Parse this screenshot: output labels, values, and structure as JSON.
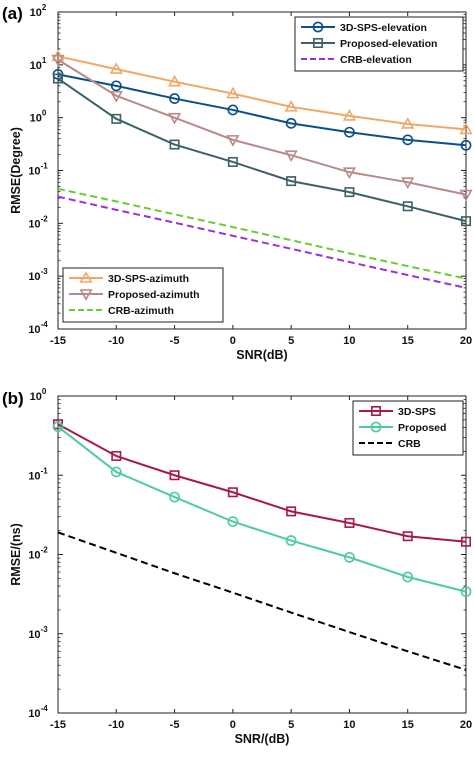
{
  "chart_data": [
    {
      "panel_label": "(a)",
      "type": "line",
      "xlabel": "SNR(dB)",
      "ylabel": "RMSE(Degree)",
      "x": [
        -15,
        -10,
        -5,
        0,
        5,
        10,
        15,
        20
      ],
      "xlim": [
        -15,
        20
      ],
      "ylim": [
        0.0001,
        100
      ],
      "yscale": "log",
      "x_ticks": [
        "-15",
        "-10",
        "-5",
        "0",
        "5",
        "10",
        "15",
        "20"
      ],
      "y_ticks": [
        {
          "base": "10",
          "exp": "-4"
        },
        {
          "base": "10",
          "exp": "-3"
        },
        {
          "base": "10",
          "exp": "-2"
        },
        {
          "base": "10",
          "exp": "-1"
        },
        {
          "base": "10",
          "exp": "0"
        },
        {
          "base": "10",
          "exp": "1"
        },
        {
          "base": "10",
          "exp": "2"
        }
      ],
      "grid": false,
      "legends": [
        {
          "placement": "top-right",
          "series": [
            0,
            1,
            2
          ]
        },
        {
          "placement": "bottom-left",
          "series": [
            3,
            4,
            5
          ]
        }
      ],
      "series": [
        {
          "name": "3D-SPS-elevation",
          "color": "#0b4f8c",
          "marker": "circle",
          "dash": "solid",
          "values": [
            6.6,
            4.0,
            2.3,
            1.4,
            0.78,
            0.53,
            0.38,
            0.3
          ]
        },
        {
          "name": "Proposed-elevation",
          "color": "#3b6268",
          "marker": "square",
          "dash": "solid",
          "values": [
            5.5,
            0.95,
            0.31,
            0.145,
            0.063,
            0.039,
            0.021,
            0.011
          ]
        },
        {
          "name": "CRB-elevation",
          "color": "#9b30d9",
          "marker": "none",
          "dash": "dashed",
          "values": [
            0.032,
            0.018,
            0.0103,
            0.0058,
            0.0033,
            0.00185,
            0.00105,
            0.0006
          ]
        },
        {
          "name": "3D-SPS-azimuth",
          "color": "#f0a868",
          "marker": "triangle-up",
          "dash": "solid",
          "values": [
            14.5,
            8.3,
            4.8,
            2.85,
            1.6,
            1.08,
            0.76,
            0.6
          ]
        },
        {
          "name": "Proposed-azimuth",
          "color": "#b88a8a",
          "marker": "triangle-down",
          "dash": "solid",
          "values": [
            12.5,
            2.6,
            1.0,
            0.38,
            0.195,
            0.093,
            0.06,
            0.035
          ]
        },
        {
          "name": "CRB-azimuth",
          "color": "#66cc33",
          "marker": "none",
          "dash": "dashed",
          "values": [
            0.045,
            0.026,
            0.0148,
            0.0085,
            0.0048,
            0.0027,
            0.00155,
            0.0009
          ]
        }
      ]
    },
    {
      "panel_label": "(b)",
      "type": "line",
      "xlabel": "SNR/(dB)",
      "ylabel": "RMSE/(ns)",
      "x": [
        -15,
        -10,
        -5,
        0,
        5,
        10,
        15,
        20
      ],
      "xlim": [
        -15,
        20
      ],
      "ylim": [
        0.0001,
        1
      ],
      "yscale": "log",
      "x_ticks": [
        "-15",
        "-10",
        "-5",
        "0",
        "5",
        "10",
        "15",
        "20"
      ],
      "y_ticks": [
        {
          "base": "10",
          "exp": "-4"
        },
        {
          "base": "10",
          "exp": "-3"
        },
        {
          "base": "10",
          "exp": "-2"
        },
        {
          "base": "10",
          "exp": "-1"
        },
        {
          "base": "10",
          "exp": "0"
        }
      ],
      "grid": false,
      "legends": [
        {
          "placement": "top-right",
          "series": [
            0,
            1,
            2
          ]
        }
      ],
      "series": [
        {
          "name": "3D-SPS",
          "color": "#a8184f",
          "marker": "square",
          "dash": "solid",
          "values": [
            0.44,
            0.175,
            0.1,
            0.061,
            0.035,
            0.025,
            0.017,
            0.0145
          ]
        },
        {
          "name": "Proposed",
          "color": "#4ecb9e",
          "marker": "circle",
          "dash": "solid",
          "values": [
            0.41,
            0.11,
            0.053,
            0.026,
            0.015,
            0.0092,
            0.0052,
            0.0034
          ]
        },
        {
          "name": "CRB",
          "color": "#000000",
          "marker": "none",
          "dash": "dashed",
          "values": [
            0.019,
            0.0105,
            0.0058,
            0.0033,
            0.00185,
            0.00105,
            0.0006,
            0.00035
          ]
        }
      ]
    }
  ]
}
